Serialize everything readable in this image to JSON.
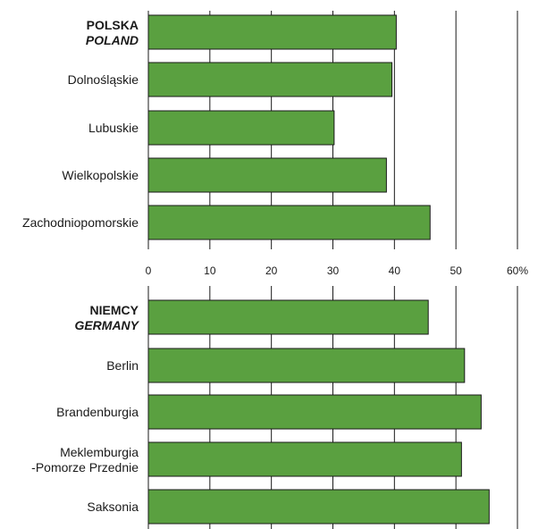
{
  "chart_data": [
    {
      "type": "bar",
      "orientation": "horizontal",
      "categories": [
        {
          "line1": "POLSKA",
          "line2": "POLAND",
          "emphasis": true
        },
        {
          "line1": "Dolnośląskie",
          "line2": ""
        },
        {
          "line1": "Lubuskie",
          "line2": ""
        },
        {
          "line1": "Wielkopolskie",
          "line2": ""
        },
        {
          "line1": "Zachodniopomorskie",
          "line2": ""
        }
      ],
      "values": [
        40.3,
        39.6,
        30.2,
        38.7,
        45.8
      ],
      "xlim": [
        0,
        60
      ],
      "grid": true
    },
    {
      "type": "bar",
      "orientation": "horizontal",
      "categories": [
        {
          "line1": "NIEMCY",
          "line2": "GERMANY",
          "emphasis": true
        },
        {
          "line1": "Berlin",
          "line2": ""
        },
        {
          "line1": "Brandenburgia",
          "line2": ""
        },
        {
          "line1": "Meklemburgia",
          "line2": "-Pomorze Przednie"
        },
        {
          "line1": "Saksonia",
          "line2": ""
        }
      ],
      "values": [
        45.5,
        51.4,
        54.1,
        50.9,
        55.4
      ],
      "xlim": [
        0,
        60
      ],
      "grid": true
    }
  ],
  "axis": {
    "ticks": [
      0,
      10,
      20,
      30,
      40,
      50,
      60
    ],
    "tick_labels": [
      "0",
      "10",
      "20",
      "30",
      "40",
      "50",
      "60%"
    ]
  },
  "colors": {
    "bar_fill": "#5aa040",
    "bar_stroke": "#1a1a1a",
    "grid": "#1a1a1a"
  }
}
